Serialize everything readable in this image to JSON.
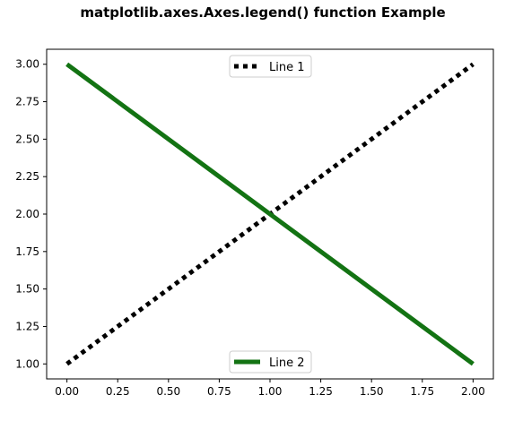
{
  "chart_data": {
    "type": "line",
    "title": "matplotlib.axes.Axes.legend() function Example",
    "xlabel": "",
    "ylabel": "",
    "xlim": [
      -0.1,
      2.1
    ],
    "ylim": [
      0.9,
      3.1
    ],
    "x_ticks": [
      0.0,
      0.25,
      0.5,
      0.75,
      1.0,
      1.25,
      1.5,
      1.75,
      2.0
    ],
    "x_tick_labels": [
      "0.00",
      "0.25",
      "0.50",
      "0.75",
      "1.00",
      "1.25",
      "1.50",
      "1.75",
      "2.00"
    ],
    "y_ticks": [
      1.0,
      1.25,
      1.5,
      1.75,
      2.0,
      2.25,
      2.5,
      2.75,
      3.0
    ],
    "y_tick_labels": [
      "1.00",
      "1.25",
      "1.50",
      "1.75",
      "2.00",
      "2.25",
      "2.50",
      "2.75",
      "3.00"
    ],
    "grid": false,
    "series": [
      {
        "name": "Line 1",
        "x": [
          0,
          1,
          2
        ],
        "y": [
          1,
          2,
          3
        ],
        "color": "#000000",
        "linestyle": "dotted",
        "legend_location": "upper center"
      },
      {
        "name": "Line 2",
        "x": [
          0,
          1,
          2
        ],
        "y": [
          3,
          2,
          1
        ],
        "color": "#137313",
        "linestyle": "solid",
        "legend_location": "lower center"
      }
    ]
  }
}
